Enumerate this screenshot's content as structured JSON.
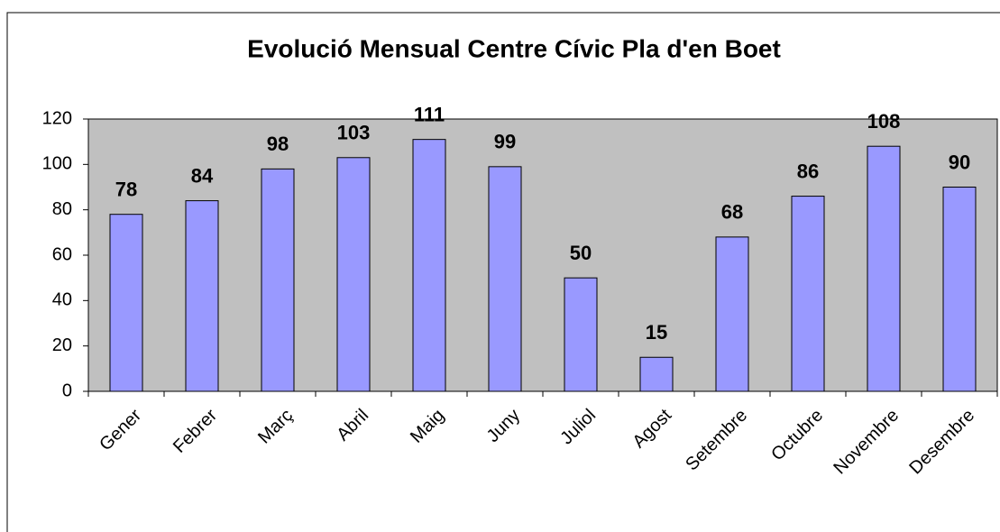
{
  "chart_data": {
    "type": "bar",
    "title": "Evolució Mensual Centre Cívic Pla d'en Boet",
    "categories": [
      "Gener",
      "Febrer",
      "Març",
      "Abril",
      "Maig",
      "Juny",
      "Juliol",
      "Agost",
      "Setembre",
      "Octubre",
      "Novembre",
      "Desembre"
    ],
    "values": [
      78,
      84,
      98,
      103,
      111,
      99,
      50,
      15,
      68,
      86,
      108,
      90
    ],
    "color": "#9999ff",
    "plot_background": "#c0c0c0",
    "ylim": [
      0,
      120
    ],
    "yticks": [
      0,
      20,
      40,
      60,
      80,
      100,
      120
    ],
    "grid": false
  }
}
